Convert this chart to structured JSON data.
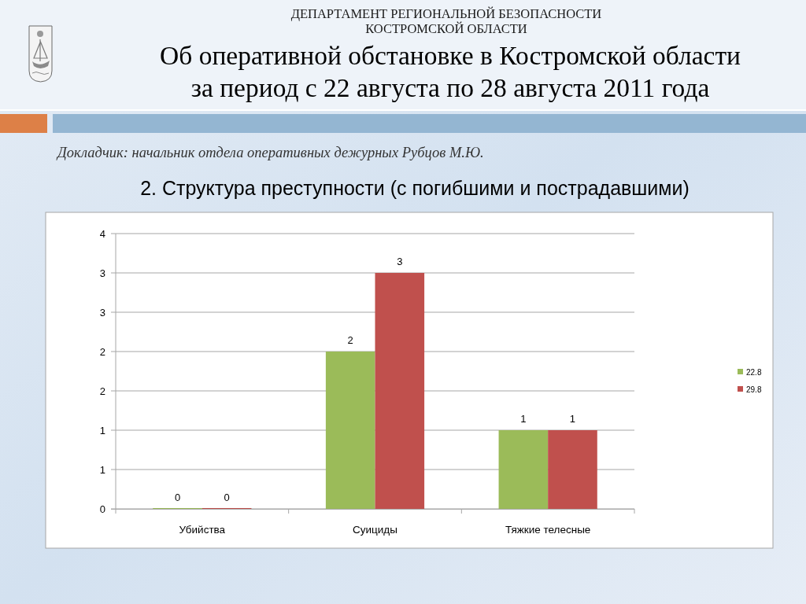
{
  "chart_data": {
    "type": "bar",
    "title": "2. Структура преступности (с погибшими и пострадавшими)",
    "annotations": [
      "ДЕПАРТАМЕНТ РЕГИОНАЛЬНОЙ БЕЗОПАСНОСТИ\nКОСТРОМСКОЙ ОБЛАСТИ",
      "Об оперативной обстановке в Костромской области\nза период с 22 августа по 28 августа 2011 года",
      "Докладчик: начальник отдела оперативных дежурных Рубцов М.Ю."
    ],
    "categories": [
      "Убийства",
      "Суициды",
      "Тяжкие телесные"
    ],
    "series": [
      {
        "name": "22.8",
        "color": "#9bbb59",
        "values": [
          0,
          2,
          1
        ]
      },
      {
        "name": "29.8",
        "color": "#c0504d",
        "values": [
          0,
          3,
          1
        ]
      }
    ],
    "ylim": [
      0,
      3.5
    ],
    "yticks": [
      0,
      {
        "value": 0.5,
        "label": "1"
      },
      1,
      {
        "value": 1.5,
        "label": "2"
      },
      2,
      {
        "value": 2.5,
        "label": "3"
      },
      3,
      {
        "value": 3.5,
        "label": "4"
      }
    ],
    "grid": "y",
    "legend": "right",
    "data_labels": true
  }
}
